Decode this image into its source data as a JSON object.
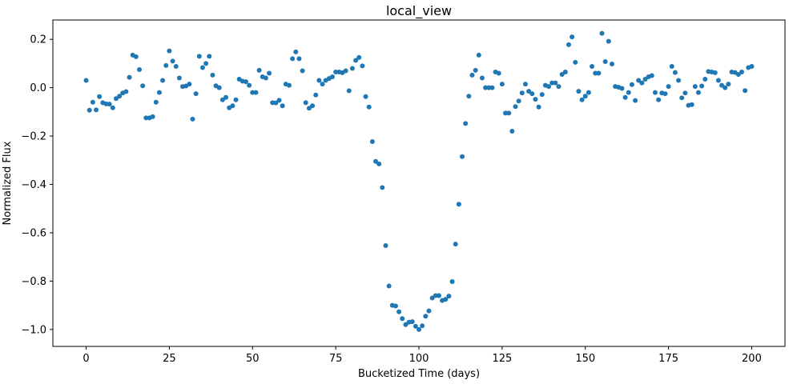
{
  "chart_data": {
    "type": "scatter",
    "title": "local_view",
    "xlabel": "Bucketized Time (days)",
    "ylabel": "Normalized Flux",
    "xlim": [
      -10,
      210
    ],
    "ylim": [
      -1.07,
      0.28
    ],
    "xticks": [
      0,
      25,
      50,
      75,
      100,
      125,
      150,
      175,
      200
    ],
    "yticks": [
      -1.0,
      -0.8,
      -0.6,
      -0.4,
      -0.2,
      0.0,
      0.2
    ],
    "xtick_labels": [
      "0",
      "25",
      "50",
      "75",
      "100",
      "125",
      "150",
      "175",
      "200"
    ],
    "ytick_labels": [
      "−1.0",
      "−0.8",
      "−0.6",
      "−0.4",
      "−0.2",
      "0.0",
      "0.2"
    ],
    "grid": false,
    "marker_color": "#1f77b4",
    "y": [
      0.03,
      -0.093,
      -0.06,
      -0.092,
      -0.037,
      -0.062,
      -0.067,
      -0.068,
      -0.083,
      -0.045,
      -0.035,
      -0.022,
      -0.016,
      0.043,
      0.135,
      0.128,
      0.075,
      0.008,
      -0.125,
      -0.125,
      -0.12,
      -0.06,
      -0.02,
      0.03,
      0.092,
      0.152,
      0.11,
      0.088,
      0.04,
      0.005,
      0.007,
      0.015,
      -0.13,
      -0.025,
      0.13,
      0.083,
      0.1,
      0.13,
      0.052,
      0.008,
      0.0,
      -0.05,
      -0.04,
      -0.083,
      -0.075,
      -0.05,
      0.035,
      0.027,
      0.025,
      0.01,
      -0.02,
      -0.02,
      0.072,
      0.045,
      0.04,
      0.06,
      -0.062,
      -0.063,
      -0.052,
      -0.075,
      0.015,
      0.01,
      0.12,
      0.148,
      0.12,
      0.07,
      -0.062,
      -0.085,
      -0.075,
      -0.03,
      0.03,
      0.015,
      0.03,
      0.038,
      0.045,
      0.065,
      0.065,
      0.062,
      0.07,
      -0.013,
      0.08,
      0.113,
      0.125,
      0.09,
      -0.037,
      -0.08,
      -0.223,
      -0.305,
      -0.315,
      -0.413,
      -0.653,
      -0.82,
      -0.9,
      -0.903,
      -0.927,
      -0.955,
      -0.98,
      -0.97,
      -0.968,
      -0.987,
      -1.0,
      -0.985,
      -0.945,
      -0.923,
      -0.87,
      -0.86,
      -0.86,
      -0.88,
      -0.875,
      -0.862,
      -0.802,
      -0.647,
      -0.482,
      -0.285,
      -0.148,
      -0.035,
      0.052,
      0.072,
      0.135,
      0.04,
      0.0,
      0.0,
      0.0,
      0.065,
      0.06,
      0.015,
      -0.105,
      -0.105,
      -0.18,
      -0.078,
      -0.055,
      -0.022,
      0.015,
      -0.015,
      -0.025,
      -0.048,
      -0.08,
      -0.028,
      0.01,
      0.005,
      0.02,
      0.02,
      0.005,
      0.055,
      0.065,
      0.178,
      0.21,
      0.105,
      -0.015,
      -0.05,
      -0.035,
      -0.02,
      0.088,
      0.06,
      0.06,
      0.225,
      0.108,
      0.192,
      0.098,
      0.005,
      0.002,
      -0.003,
      -0.04,
      -0.02,
      0.013,
      -0.053,
      0.03,
      0.02,
      0.035,
      0.045,
      0.05,
      -0.02,
      -0.05,
      -0.022,
      -0.025,
      0.005,
      0.088,
      0.063,
      0.03,
      -0.042,
      -0.022,
      -0.073,
      -0.07,
      0.005,
      -0.02,
      0.007,
      0.035,
      0.067,
      0.065,
      0.062,
      0.03,
      0.01,
      0.0,
      0.015,
      0.065,
      0.063,
      0.055,
      0.065,
      -0.012,
      0.083,
      0.088
    ]
  }
}
